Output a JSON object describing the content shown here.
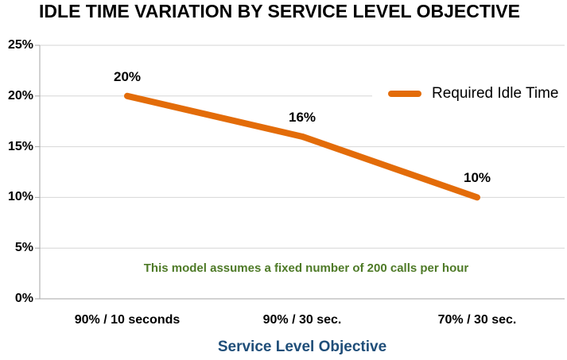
{
  "chart": {
    "title": "IDLE TIME VARIATION BY SERVICE LEVEL OBJECTIVE",
    "xlabel": "Service Level Objective",
    "annotation": "This model assumes a fixed number of 200 calls per hour",
    "legend": {
      "label": "Required Idle Time"
    }
  },
  "chart_data": {
    "type": "line",
    "title": "IDLE TIME VARIATION BY SERVICE LEVEL OBJECTIVE",
    "categories": [
      "90% / 10 seconds",
      "90% / 30 sec.",
      "70% / 30 sec."
    ],
    "series": [
      {
        "name": "Required Idle Time",
        "values": [
          20,
          16,
          10
        ],
        "color": "#E36C09"
      }
    ],
    "data_labels": [
      "20%",
      "16%",
      "10%"
    ],
    "ylim": [
      0,
      25
    ],
    "yticks": [
      0,
      5,
      10,
      15,
      20,
      25
    ],
    "ytick_labels": [
      "0%",
      "5%",
      "10%",
      "15%",
      "20%",
      "25%"
    ],
    "xlabel": "Service Level Objective",
    "annotation": "This model assumes a fixed number of 200 calls per hour",
    "grid": true,
    "legend_position": "inside-top-right",
    "colors": {
      "line": "#E36C09",
      "gridline": "#D6D6D6",
      "axis": "#A6A6A6",
      "title": "#000000",
      "tick_text": "#000000",
      "xlabel": "#1F4E79",
      "annotation": "#4E7A27"
    }
  }
}
